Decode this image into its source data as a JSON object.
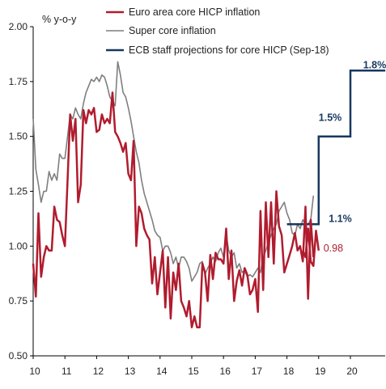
{
  "chart_data": {
    "type": "line",
    "ylabel": "% y-o-y",
    "ylim": [
      0.5,
      2.0
    ],
    "xlim": [
      2010,
      2021.1
    ],
    "y_ticks": [
      "0.50",
      "0.75",
      "1.00",
      "1.25",
      "1.50",
      "1.75",
      "2.00"
    ],
    "x_ticks": [
      "10",
      "11",
      "12",
      "13",
      "14",
      "15",
      "16",
      "17",
      "18",
      "19",
      "20"
    ],
    "legend_placement": "top-center",
    "grid": false,
    "series": [
      {
        "name": "Euro area core HICP inflation",
        "color": "#b01c2e",
        "x": [
          2010.0,
          2010.083,
          2010.167,
          2010.25,
          2010.333,
          2010.417,
          2010.5,
          2010.583,
          2010.667,
          2010.75,
          2010.833,
          2010.917,
          2011.0,
          2011.083,
          2011.167,
          2011.25,
          2011.333,
          2011.417,
          2011.5,
          2011.583,
          2011.667,
          2011.75,
          2011.833,
          2011.917,
          2012.0,
          2012.083,
          2012.167,
          2012.25,
          2012.333,
          2012.417,
          2012.5,
          2012.583,
          2012.667,
          2012.75,
          2012.833,
          2012.917,
          2013.0,
          2013.083,
          2013.167,
          2013.25,
          2013.333,
          2013.417,
          2013.5,
          2013.583,
          2013.667,
          2013.75,
          2013.833,
          2013.917,
          2014.0,
          2014.083,
          2014.167,
          2014.25,
          2014.333,
          2014.417,
          2014.5,
          2014.583,
          2014.667,
          2014.75,
          2014.833,
          2014.917,
          2015.0,
          2015.083,
          2015.167,
          2015.25,
          2015.333,
          2015.417,
          2015.5,
          2015.583,
          2015.667,
          2015.75,
          2015.833,
          2015.917,
          2016.0,
          2016.083,
          2016.167,
          2016.25,
          2016.333,
          2016.417,
          2016.5,
          2016.583,
          2016.667,
          2016.75,
          2016.833,
          2016.917,
          2017.0,
          2017.083,
          2017.167,
          2017.25,
          2017.333,
          2017.417,
          2017.5,
          2017.583,
          2017.667,
          2017.75,
          2017.833,
          2017.917,
          2018.0,
          2018.083,
          2018.167,
          2018.25,
          2018.333,
          2018.417,
          2018.5,
          2018.583,
          2018.667,
          2018.75,
          2018.833
        ],
        "y": [
          0.92,
          0.77,
          1.15,
          0.86,
          0.95,
          1.0,
          0.98,
          0.98,
          1.18,
          1.12,
          1.11,
          1.05,
          1.0,
          1.3,
          1.6,
          1.48,
          1.58,
          1.2,
          1.28,
          1.62,
          1.56,
          1.62,
          1.6,
          1.63,
          1.52,
          1.53,
          1.6,
          1.56,
          1.58,
          1.56,
          1.7,
          1.52,
          1.5,
          1.47,
          1.43,
          1.47,
          1.33,
          1.3,
          1.48,
          1.0,
          1.18,
          1.15,
          1.08,
          1.05,
          1.03,
          0.83,
          0.95,
          0.78,
          0.88,
          0.98,
          0.72,
          0.95,
          0.67,
          0.88,
          0.8,
          0.92,
          0.75,
          0.72,
          0.68,
          0.75,
          0.63,
          0.68,
          0.63,
          0.63,
          0.92,
          0.88,
          0.75,
          0.96,
          0.85,
          0.97,
          0.94,
          0.94,
          0.92,
          1.08,
          0.85,
          0.98,
          0.75,
          0.84,
          0.89,
          0.82,
          0.9,
          0.87,
          0.78,
          0.8,
          0.85,
          0.7,
          1.16,
          0.8,
          1.2,
          0.95,
          1.2,
          0.92,
          1.25,
          1.09,
          1.05,
          0.88,
          0.92,
          0.96,
          1.0,
          1.06,
          0.98,
          1.0,
          0.93,
          1.18,
          0.76,
          1.12,
          0.95
        ],
        "tail": [
          {
            "x": 2018.5,
            "y": 0.98
          },
          {
            "x": 2018.583,
            "y": 0.95
          },
          {
            "x": 2018.667,
            "y": 1.08
          },
          {
            "x": 2018.75,
            "y": 0.93
          },
          {
            "x": 2018.833,
            "y": 0.91
          },
          {
            "x": 2018.917,
            "y": 1.07
          },
          {
            "x": 2019.0,
            "y": 0.98
          }
        ]
      },
      {
        "name": "Super core inflation",
        "color": "#7f7f7f",
        "x": [
          2010.0,
          2010.083,
          2010.167,
          2010.25,
          2010.333,
          2010.417,
          2010.5,
          2010.583,
          2010.667,
          2010.75,
          2010.833,
          2010.917,
          2011.0,
          2011.083,
          2011.167,
          2011.25,
          2011.333,
          2011.417,
          2011.5,
          2011.583,
          2011.667,
          2011.75,
          2011.833,
          2011.917,
          2012.0,
          2012.083,
          2012.167,
          2012.25,
          2012.333,
          2012.417,
          2012.5,
          2012.583,
          2012.667,
          2012.75,
          2012.833,
          2012.917,
          2013.0,
          2013.083,
          2013.167,
          2013.25,
          2013.333,
          2013.417,
          2013.5,
          2013.583,
          2013.667,
          2013.75,
          2013.833,
          2013.917,
          2014.0,
          2014.083,
          2014.167,
          2014.25,
          2014.333,
          2014.417,
          2014.5,
          2014.583,
          2014.667,
          2014.75,
          2014.833,
          2014.917,
          2015.0,
          2015.083,
          2015.167,
          2015.25,
          2015.333,
          2015.417,
          2015.5,
          2015.583,
          2015.667,
          2015.75,
          2015.833,
          2015.917,
          2016.0,
          2016.083,
          2016.167,
          2016.25,
          2016.333,
          2016.417,
          2016.5,
          2016.583,
          2016.667,
          2016.75,
          2016.833,
          2016.917,
          2017.0,
          2017.083,
          2017.167,
          2017.25,
          2017.333,
          2017.417,
          2017.5,
          2017.583,
          2017.667,
          2017.75,
          2017.833,
          2017.917,
          2018.0,
          2018.083,
          2018.167,
          2018.25,
          2018.333,
          2018.417,
          2018.5,
          2018.583,
          2018.667,
          2018.75,
          2018.833
        ],
        "y": [
          1.58,
          1.35,
          1.28,
          1.2,
          1.25,
          1.25,
          1.34,
          1.3,
          1.33,
          1.3,
          1.42,
          1.4,
          1.4,
          1.5,
          1.6,
          1.58,
          1.63,
          1.6,
          1.58,
          1.65,
          1.7,
          1.73,
          1.76,
          1.75,
          1.77,
          1.75,
          1.78,
          1.77,
          1.73,
          1.68,
          1.66,
          1.64,
          1.84,
          1.78,
          1.7,
          1.68,
          1.63,
          1.57,
          1.5,
          1.43,
          1.38,
          1.3,
          1.24,
          1.2,
          1.16,
          1.12,
          1.07,
          1.05,
          1.04,
          0.98,
          1.0,
          1.0,
          0.97,
          0.92,
          0.95,
          0.9,
          0.95,
          0.95,
          0.93,
          0.9,
          0.84,
          0.86,
          0.88,
          0.92,
          0.93,
          0.87,
          0.9,
          0.92,
          0.95,
          0.93,
          0.97,
          0.99,
          0.95,
          1.05,
          0.98,
          0.95,
          0.97,
          0.9,
          0.92,
          0.88,
          0.89,
          0.86,
          0.87,
          0.86,
          0.88,
          0.9,
          0.88,
          0.95,
          0.98,
          1.02,
          1.05,
          1.08,
          1.1,
          1.16,
          1.18,
          1.2,
          1.15,
          1.12,
          1.06,
          1.05,
          1.1,
          1.08,
          1.12,
          1.1,
          1.1,
          1.12,
          1.23
        ]
      },
      {
        "name": "ECB staff projections for core HICP (Sep-18)",
        "color": "#17375e",
        "steps": [
          {
            "x0": 2018.0,
            "x1": 2019.0,
            "y": 1.1
          },
          {
            "x0": 2019.0,
            "x1": 2020.0,
            "y": 1.5
          },
          {
            "x0": 2020.0,
            "x1": 2021.1,
            "y": 1.8
          }
        ]
      }
    ],
    "annotations": [
      {
        "text": "1.8%",
        "x": 2020.4,
        "y": 1.81,
        "color": "#17375e"
      },
      {
        "text": "1.5%",
        "x": 2019.0,
        "y": 1.57,
        "color": "#17375e"
      },
      {
        "text": "1.1%",
        "x": 2019.32,
        "y": 1.11,
        "color": "#17375e"
      },
      {
        "text": "0.98",
        "x": 2019.15,
        "y": 0.975,
        "color": "#b01c2e"
      }
    ]
  }
}
